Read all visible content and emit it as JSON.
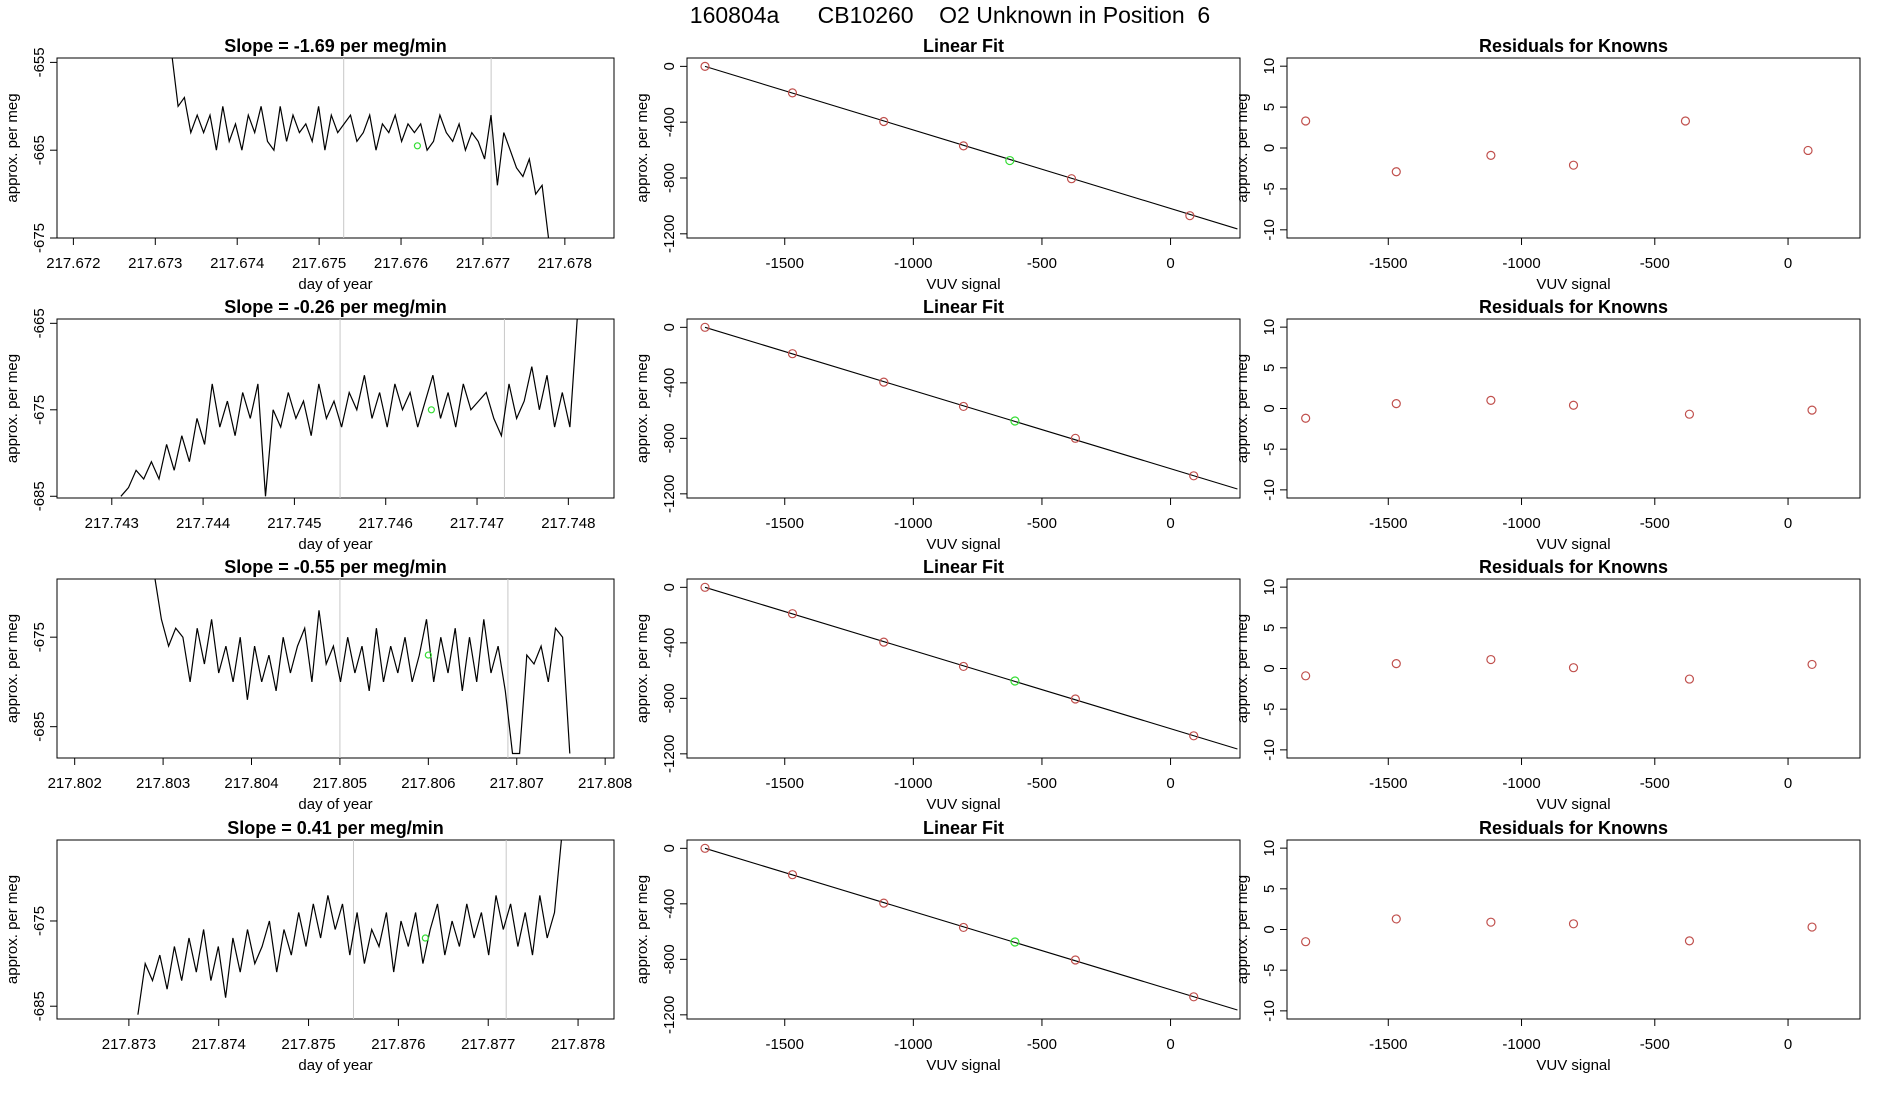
{
  "page_title": "160804a      CB10260    O2 Unknown in Position  6",
  "colors": {
    "line": "#000000",
    "known_point": "#c0504d",
    "unknown_point": "#33dd33",
    "marker_line": "#c8c8c8"
  },
  "chart_data": [
    {
      "type": "line",
      "title": "Slope =  -1.69  per meg/min",
      "xlabel": "day of year",
      "ylabel": "approx. per meg",
      "xlim": [
        217.6718,
        217.6786
      ],
      "ylim": [
        -675,
        -654.5
      ],
      "xticks": [
        "217.672",
        "217.673",
        "217.674",
        "217.675",
        "217.676",
        "217.677",
        "217.678"
      ],
      "yticks": [
        "-655",
        "-665",
        "-675"
      ],
      "markers": [
        217.6753,
        217.6771
      ],
      "unknown_point": [
        217.6762,
        -664.5
      ],
      "series": [
        {
          "x0": 217.6732,
          "x1": 217.6778,
          "values": [
            -654,
            -660,
            -659,
            -663,
            -661,
            -663,
            -661,
            -665,
            -660,
            -664,
            -662,
            -665,
            -661,
            -663,
            -660,
            -664,
            -665,
            -660,
            -664,
            -661,
            -663,
            -662,
            -664,
            -660,
            -665,
            -661,
            -663,
            -662,
            -661,
            -664,
            -663,
            -661,
            -665,
            -662,
            -663,
            -661,
            -664,
            -662,
            -663,
            -662,
            -665,
            -664,
            -661,
            -663,
            -664,
            -662,
            -665,
            -663,
            -664,
            -666,
            -661,
            -669,
            -663,
            -665,
            -667,
            -668,
            -666,
            -670,
            -669,
            -675
          ]
        }
      ]
    },
    {
      "type": "scatter",
      "title": "Linear Fit",
      "xlabel": "VUV signal",
      "ylabel": "approx. per meg",
      "xlim": [
        -1880,
        270
      ],
      "ylim": [
        -1230,
        60
      ],
      "xticks": [
        "-1500",
        "-1000",
        "-500",
        "0"
      ],
      "yticks": [
        "0",
        "-400",
        "-800",
        "-1200"
      ],
      "fit_line": [
        [
          -1810,
          0
        ],
        [
          260,
          -1165
        ]
      ],
      "known_points": [
        [
          -1810,
          0
        ],
        [
          -1470,
          -190
        ],
        [
          -1115,
          -395
        ],
        [
          -805,
          -570
        ],
        [
          -385,
          -805
        ],
        [
          75,
          -1070
        ]
      ],
      "unknown_point": [
        -625,
        -675
      ]
    },
    {
      "type": "scatter",
      "title": "Residuals for Knowns",
      "xlabel": "VUV signal",
      "ylabel": "approx. per meg",
      "xlim": [
        -1880,
        270
      ],
      "ylim": [
        -11,
        11
      ],
      "xticks": [
        "-1500",
        "-1000",
        "-500",
        "0"
      ],
      "yticks": [
        "10",
        "5",
        "0",
        "-5",
        "-10"
      ],
      "known_points": [
        [
          -1810,
          3.3
        ],
        [
          -1470,
          -2.9
        ],
        [
          -1115,
          -0.9
        ],
        [
          -805,
          -2.1
        ],
        [
          -385,
          3.3
        ],
        [
          75,
          -0.3
        ]
      ]
    },
    {
      "type": "line",
      "title": "Slope =  -0.26  per meg/min",
      "xlabel": "day of year",
      "ylabel": "approx. per meg",
      "xlim": [
        217.7424,
        217.7485
      ],
      "ylim": [
        -685.2,
        -664.5
      ],
      "xticks": [
        "217.743",
        "217.744",
        "217.745",
        "217.746",
        "217.747",
        "217.748"
      ],
      "yticks": [
        "-665",
        "-675",
        "-685"
      ],
      "markers": [
        217.7455,
        217.7473
      ],
      "unknown_point": [
        217.7465,
        -675
      ],
      "series": [
        {
          "x0": 217.7431,
          "x1": 217.7481,
          "values": [
            -685,
            -684,
            -682,
            -683,
            -681,
            -683,
            -679,
            -682,
            -678,
            -681,
            -676,
            -679,
            -672,
            -677,
            -674,
            -678,
            -673,
            -676,
            -672,
            -685,
            -675,
            -677,
            -673,
            -676,
            -674,
            -678,
            -672,
            -676,
            -674,
            -677,
            -673,
            -675,
            -671,
            -676,
            -673,
            -677,
            -672,
            -675,
            -673,
            -677,
            -674,
            -671,
            -676,
            -673,
            -677,
            -672,
            -675,
            -674,
            -673,
            -676,
            -678,
            -672,
            -676,
            -674,
            -670,
            -675,
            -671,
            -677,
            -673,
            -677,
            -664
          ]
        }
      ]
    },
    {
      "type": "scatter",
      "title": "Linear Fit",
      "xlabel": "VUV signal",
      "ylabel": "approx. per meg",
      "xlim": [
        -1880,
        270
      ],
      "ylim": [
        -1230,
        60
      ],
      "xticks": [
        "-1500",
        "-1000",
        "-500",
        "0"
      ],
      "yticks": [
        "0",
        "-400",
        "-800",
        "-1200"
      ],
      "fit_line": [
        [
          -1810,
          0
        ],
        [
          260,
          -1165
        ]
      ],
      "known_points": [
        [
          -1810,
          0
        ],
        [
          -1470,
          -190
        ],
        [
          -1115,
          -395
        ],
        [
          -805,
          -570
        ],
        [
          -370,
          -800
        ],
        [
          90,
          -1070
        ]
      ],
      "unknown_point": [
        -605,
        -675
      ]
    },
    {
      "type": "scatter",
      "title": "Residuals for Knowns",
      "xlabel": "VUV signal",
      "ylabel": "approx. per meg",
      "xlim": [
        -1880,
        270
      ],
      "ylim": [
        -11,
        11
      ],
      "xticks": [
        "-1500",
        "-1000",
        "-500",
        "0"
      ],
      "yticks": [
        "10",
        "5",
        "0",
        "-5",
        "-10"
      ],
      "known_points": [
        [
          -1810,
          -1.2
        ],
        [
          -1470,
          0.6
        ],
        [
          -1115,
          1.0
        ],
        [
          -805,
          0.4
        ],
        [
          -370,
          -0.7
        ],
        [
          90,
          -0.2
        ]
      ]
    },
    {
      "type": "line",
      "title": "Slope =  -0.55  per meg/min",
      "xlabel": "day of year",
      "ylabel": "approx. per meg",
      "xlim": [
        217.8018,
        217.8081
      ],
      "ylim": [
        -688.5,
        -668.5
      ],
      "xticks": [
        "217.802",
        "217.803",
        "217.804",
        "217.805",
        "217.806",
        "217.807",
        "217.808"
      ],
      "yticks": [
        "-675",
        "-685"
      ],
      "markers": [
        217.805,
        217.8069
      ],
      "unknown_point": [
        217.806,
        -677
      ],
      "series": [
        {
          "x0": 217.8029,
          "x1": 217.8076,
          "values": [
            -668,
            -673,
            -676,
            -674,
            -675,
            -680,
            -674,
            -678,
            -673,
            -679,
            -676,
            -680,
            -675,
            -682,
            -676,
            -680,
            -677,
            -681,
            -675,
            -679,
            -676,
            -674,
            -680,
            -672,
            -678,
            -676,
            -680,
            -675,
            -679,
            -676,
            -681,
            -674,
            -680,
            -676,
            -679,
            -675,
            -680,
            -677,
            -673,
            -680,
            -675,
            -679,
            -674,
            -681,
            -675,
            -680,
            -673,
            -679,
            -676,
            -681,
            -688,
            -688,
            -677,
            -678,
            -676,
            -680,
            -674,
            -675,
            -688
          ]
        }
      ]
    },
    {
      "type": "scatter",
      "title": "Linear Fit",
      "xlabel": "VUV signal",
      "ylabel": "approx. per meg",
      "xlim": [
        -1880,
        270
      ],
      "ylim": [
        -1230,
        60
      ],
      "xticks": [
        "-1500",
        "-1000",
        "-500",
        "0"
      ],
      "yticks": [
        "0",
        "-400",
        "-800",
        "-1200"
      ],
      "fit_line": [
        [
          -1810,
          0
        ],
        [
          260,
          -1165
        ]
      ],
      "known_points": [
        [
          -1810,
          0
        ],
        [
          -1470,
          -190
        ],
        [
          -1115,
          -395
        ],
        [
          -805,
          -570
        ],
        [
          -370,
          -805
        ],
        [
          90,
          -1070
        ]
      ],
      "unknown_point": [
        -605,
        -675
      ]
    },
    {
      "type": "scatter",
      "title": "Residuals for Knowns",
      "xlabel": "VUV signal",
      "ylabel": "approx. per meg",
      "xlim": [
        -1880,
        270
      ],
      "ylim": [
        -11,
        11
      ],
      "xticks": [
        "-1500",
        "-1000",
        "-500",
        "0"
      ],
      "yticks": [
        "10",
        "5",
        "0",
        "-5",
        "-10"
      ],
      "known_points": [
        [
          -1810,
          -0.9
        ],
        [
          -1470,
          0.6
        ],
        [
          -1115,
          1.1
        ],
        [
          -805,
          0.1
        ],
        [
          -370,
          -1.3
        ],
        [
          90,
          0.5
        ]
      ]
    },
    {
      "type": "line",
      "title": "Slope =  0.41  per meg/min",
      "xlabel": "day of year",
      "ylabel": "approx. per meg",
      "xlim": [
        217.8722,
        217.8784
      ],
      "ylim": [
        -686.5,
        -665.5
      ],
      "xticks": [
        "217.873",
        "217.874",
        "217.875",
        "217.876",
        "217.877",
        "217.878"
      ],
      "yticks": [
        "-675",
        "-685"
      ],
      "markers": [
        217.8755,
        217.8772
      ],
      "unknown_point": [
        217.8763,
        -677
      ],
      "series": [
        {
          "x0": 217.8731,
          "x1": 217.8779,
          "values": [
            -686,
            -680,
            -682,
            -679,
            -683,
            -678,
            -682,
            -677,
            -681,
            -676,
            -682,
            -678,
            -684,
            -677,
            -681,
            -676,
            -680,
            -678,
            -675,
            -681,
            -676,
            -679,
            -674,
            -678,
            -673,
            -677,
            -672,
            -676,
            -673,
            -679,
            -674,
            -680,
            -676,
            -678,
            -674,
            -681,
            -675,
            -678,
            -674,
            -680,
            -676,
            -673,
            -679,
            -675,
            -678,
            -673,
            -677,
            -674,
            -679,
            -672,
            -676,
            -673,
            -678,
            -674,
            -679,
            -672,
            -677,
            -674,
            -665,
            -665
          ]
        }
      ]
    },
    {
      "type": "scatter",
      "title": "Linear Fit",
      "xlabel": "VUV signal",
      "ylabel": "approx. per meg",
      "xlim": [
        -1880,
        270
      ],
      "ylim": [
        -1230,
        60
      ],
      "xticks": [
        "-1500",
        "-1000",
        "-500",
        "0"
      ],
      "yticks": [
        "0",
        "-400",
        "-800",
        "-1200"
      ],
      "fit_line": [
        [
          -1810,
          0
        ],
        [
          260,
          -1165
        ]
      ],
      "known_points": [
        [
          -1810,
          0
        ],
        [
          -1470,
          -190
        ],
        [
          -1115,
          -395
        ],
        [
          -805,
          -570
        ],
        [
          -370,
          -805
        ],
        [
          90,
          -1070
        ]
      ],
      "unknown_point": [
        -605,
        -675
      ]
    },
    {
      "type": "scatter",
      "title": "Residuals for Knowns",
      "xlabel": "VUV signal",
      "ylabel": "approx. per meg",
      "xlim": [
        -1880,
        270
      ],
      "ylim": [
        -11,
        11
      ],
      "xticks": [
        "-1500",
        "-1000",
        "-500",
        "0"
      ],
      "yticks": [
        "10",
        "5",
        "0",
        "-5",
        "-10"
      ],
      "known_points": [
        [
          -1810,
          -1.5
        ],
        [
          -1470,
          1.3
        ],
        [
          -1115,
          0.9
        ],
        [
          -805,
          0.7
        ],
        [
          -370,
          -1.4
        ],
        [
          90,
          0.3
        ]
      ]
    }
  ]
}
